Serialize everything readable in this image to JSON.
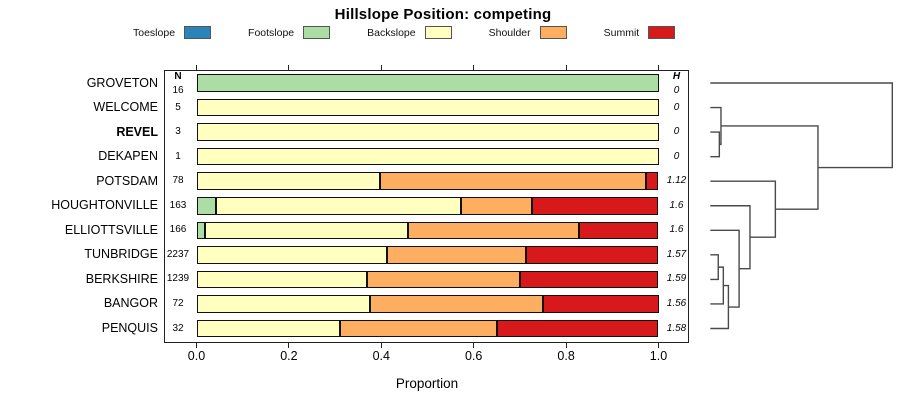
{
  "title": "Hillslope Position: competing",
  "xlabel": "Proportion",
  "columns": {
    "n_header": "N",
    "h_header": "H"
  },
  "legend": {
    "items": [
      {
        "label": "Toeslope",
        "color": "#2B83BA"
      },
      {
        "label": "Footslope",
        "color": "#ABDDA4"
      },
      {
        "label": "Backslope",
        "color": "#FFFFBF"
      },
      {
        "label": "Shoulder",
        "color": "#FDAE61"
      },
      {
        "label": "Summit",
        "color": "#D7191C"
      }
    ]
  },
  "chart_data": {
    "type": "bar",
    "variant": "horizontal-stacked-proportion",
    "title": "Hillslope Position: competing",
    "xlabel": "Proportion",
    "xlim": [
      0,
      1
    ],
    "x_ticks": [
      "0.0",
      "0.2",
      "0.4",
      "0.6",
      "0.8",
      "1.0"
    ],
    "stack_categories": [
      "Toeslope",
      "Footslope",
      "Backslope",
      "Shoulder",
      "Summit"
    ],
    "rows": [
      {
        "name": "GROVETON",
        "n": "16",
        "h": "0",
        "bold": false,
        "proportions": {
          "Footslope": 1.0
        }
      },
      {
        "name": "WELCOME",
        "n": "5",
        "h": "0",
        "bold": false,
        "proportions": {
          "Backslope": 1.0
        }
      },
      {
        "name": "REVEL",
        "n": "3",
        "h": "0",
        "bold": true,
        "proportions": {
          "Backslope": 1.0
        }
      },
      {
        "name": "DEKAPEN",
        "n": "1",
        "h": "0",
        "bold": false,
        "proportions": {
          "Backslope": 1.0
        }
      },
      {
        "name": "POTSDAM",
        "n": "78",
        "h": "1.12",
        "bold": false,
        "proportions": {
          "Backslope": 0.397,
          "Shoulder": 0.577,
          "Summit": 0.026
        }
      },
      {
        "name": "HOUGHTONVILLE",
        "n": "163",
        "h": "1.6",
        "bold": false,
        "proportions": {
          "Footslope": 0.043,
          "Backslope": 0.53,
          "Shoulder": 0.153,
          "Summit": 0.274
        }
      },
      {
        "name": "ELLIOTTSVILLE",
        "n": "166",
        "h": "1.6",
        "bold": false,
        "proportions": {
          "Footslope": 0.018,
          "Backslope": 0.439,
          "Shoulder": 0.371,
          "Summit": 0.172
        }
      },
      {
        "name": "TUNBRIDGE",
        "n": "2237",
        "h": "1.57",
        "bold": false,
        "proportions": {
          "Backslope": 0.413,
          "Shoulder": 0.3,
          "Summit": 0.287
        }
      },
      {
        "name": "BERKSHIRE",
        "n": "1239",
        "h": "1.59",
        "bold": false,
        "proportions": {
          "Backslope": 0.37,
          "Shoulder": 0.33,
          "Summit": 0.3
        }
      },
      {
        "name": "BANGOR",
        "n": "72",
        "h": "1.56",
        "bold": false,
        "proportions": {
          "Backslope": 0.375,
          "Shoulder": 0.375,
          "Summit": 0.25
        }
      },
      {
        "name": "PENQUIS",
        "n": "32",
        "h": "1.58",
        "bold": false,
        "proportions": {
          "Backslope": 0.31,
          "Shoulder": 0.34,
          "Summit": 0.35
        }
      }
    ]
  },
  "dendrogram": {
    "leaves": [
      "GROVETON",
      "WELCOME",
      "REVEL",
      "DEKAPEN",
      "POTSDAM",
      "HOUGHTONVILLE",
      "ELLIOTTSVILLE",
      "TUNBRIDGE",
      "BERKSHIRE",
      "BANGOR",
      "PENQUIS"
    ],
    "merges": [
      {
        "a": "L2",
        "b": "L3",
        "h": 0.046
      },
      {
        "a": "L1",
        "b": "M0",
        "h": 0.055
      },
      {
        "a": "L7",
        "b": "L8",
        "h": 0.04
      },
      {
        "a": "M2",
        "b": "L9",
        "h": 0.068
      },
      {
        "a": "M3",
        "b": "L10",
        "h": 0.096
      },
      {
        "a": "L6",
        "b": "M4",
        "h": 0.155
      },
      {
        "a": "L5",
        "b": "M5",
        "h": 0.215
      },
      {
        "a": "L4",
        "b": "M6",
        "h": 0.355
      },
      {
        "a": "M1",
        "b": "M7",
        "h": 0.59
      },
      {
        "a": "L0",
        "b": "M8",
        "h": 1.0
      }
    ]
  }
}
